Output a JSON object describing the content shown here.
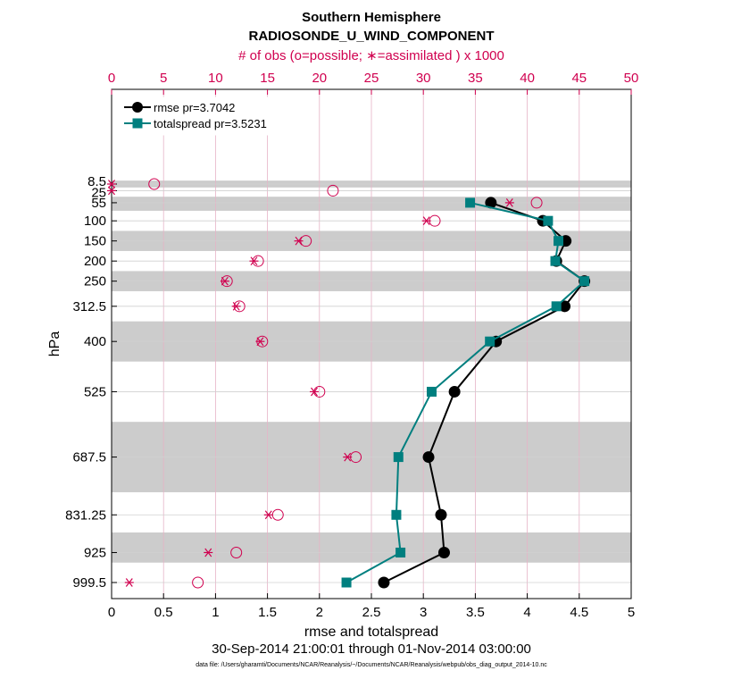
{
  "chart_data": {
    "type": "line",
    "title": "Southern Hemisphere",
    "subtitle": "RADIOSONDE_U_WIND_COMPONENT",
    "top_axis_label": "# of obs (o=possible; ∗=assimilated ) x 1000",
    "xlabel": "rmse and totalspread",
    "ylabel": "hPa",
    "date_range": "30-Sep-2014 21:00:01 through 01-Nov-2014 03:00:00",
    "data_file": "data file: /Users/gharamti/Documents/NCAR/Reanalysis/~/Documents/NCAR/Reanalysis/webpub/obs_diag_output_2014-10.nc",
    "xlim": [
      0,
      5
    ],
    "top_xlim": [
      0,
      50
    ],
    "x_ticks": [
      "0",
      "0.5",
      "1",
      "1.5",
      "2",
      "2.5",
      "3",
      "3.5",
      "4",
      "4.5",
      "5"
    ],
    "top_ticks": [
      "0",
      "5",
      "10",
      "15",
      "20",
      "25",
      "30",
      "35",
      "40",
      "45",
      "50"
    ],
    "y_ticks": [
      "8.5",
      "25",
      "55",
      "100",
      "150",
      "200",
      "250",
      "312.5",
      "400",
      "525",
      "687.5",
      "831.25",
      "925",
      "999.5"
    ],
    "levels": [
      8.5,
      25,
      55,
      100,
      150,
      200,
      250,
      312.5,
      400,
      525,
      687.5,
      831.25,
      925,
      999.5
    ],
    "shaded_bands": [
      [
        0,
        17
      ],
      [
        40,
        75
      ],
      [
        125,
        175
      ],
      [
        225,
        275
      ],
      [
        350,
        450
      ],
      [
        600,
        775
      ],
      [
        875,
        950
      ]
    ],
    "legend_position": "top-left",
    "series": [
      {
        "name": "rmse pr=3.7042",
        "color": "#000000",
        "levels": [
          55,
          100,
          150,
          200,
          250,
          312.5,
          400,
          525,
          687.5,
          831.25,
          925,
          999.5
        ],
        "values": [
          3.65,
          4.15,
          4.37,
          4.28,
          4.55,
          4.36,
          3.7,
          3.3,
          3.05,
          3.17,
          3.2,
          2.62
        ]
      },
      {
        "name": "totalspread pr=3.5231",
        "color": "#007f7f",
        "levels": [
          55,
          100,
          150,
          200,
          250,
          312.5,
          400,
          525,
          687.5,
          831.25,
          925,
          999.5
        ],
        "values": [
          3.45,
          4.2,
          4.3,
          4.27,
          4.55,
          4.28,
          3.64,
          3.08,
          2.76,
          2.74,
          2.78,
          2.26
        ]
      }
    ],
    "obs_possible": {
      "levels": [
        8.5,
        25,
        55,
        100,
        150,
        200,
        250,
        312.5,
        400,
        525,
        687.5,
        831.25,
        925,
        999.5
      ],
      "values": [
        4.1,
        21.3,
        40.9,
        31.1,
        18.7,
        14.1,
        11.1,
        12.3,
        14.5,
        20.0,
        23.5,
        16.0,
        12.0,
        8.3
      ]
    },
    "obs_assimilated": {
      "levels": [
        8.5,
        25,
        55,
        100,
        150,
        200,
        250,
        312.5,
        400,
        525,
        687.5,
        831.25,
        925,
        999.5
      ],
      "values": [
        0.0,
        0.0,
        38.3,
        30.3,
        18.0,
        13.7,
        10.9,
        12.0,
        14.3,
        19.5,
        22.7,
        15.1,
        9.3,
        1.7
      ]
    }
  }
}
